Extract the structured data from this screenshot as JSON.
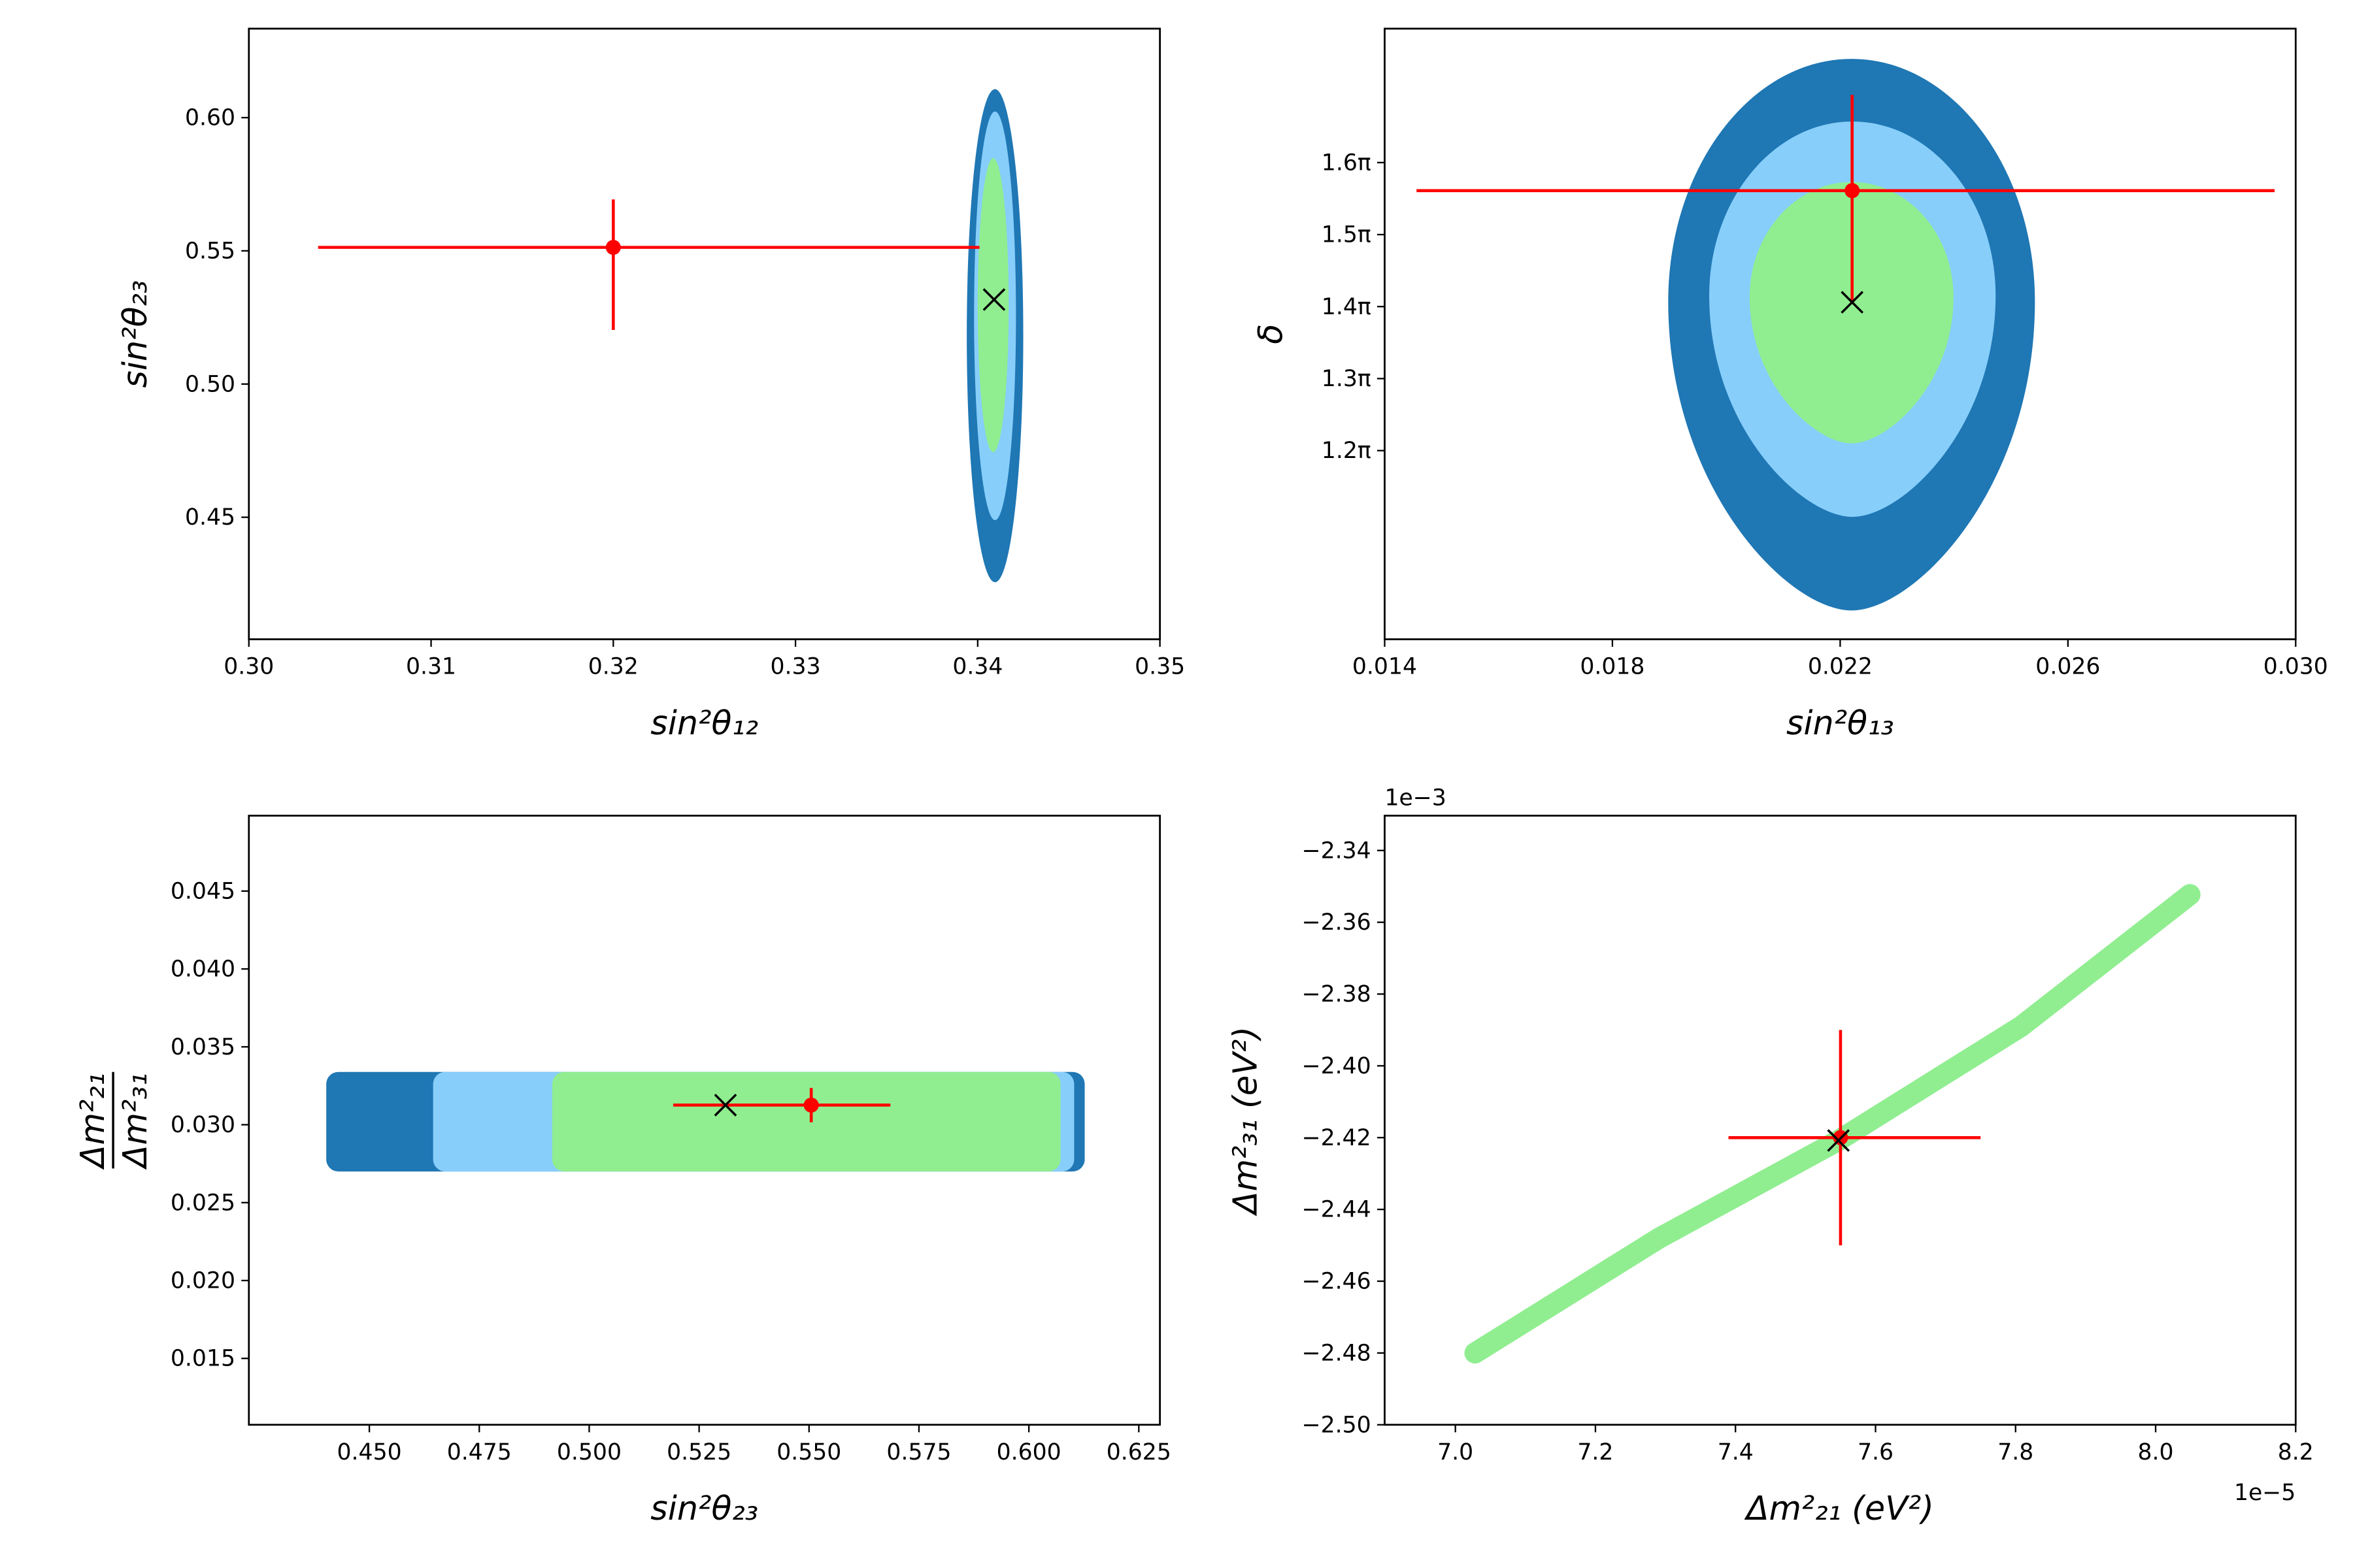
{
  "chart_data": [
    {
      "type": "contour",
      "shape": "ellipse",
      "xlabel": "sin²θ₁₂",
      "ylabel": "sin²θ₂₃",
      "xlim": [
        0.3,
        0.35
      ],
      "ylim": [
        0.4042,
        0.6334
      ],
      "xticks": [
        {
          "value": 0.3,
          "label": "0.30"
        },
        0.31,
        0.32,
        0.33,
        0.34,
        0.35
      ],
      "yticks": [
        0.45,
        {
          "value": 0.5,
          "label": "0.50"
        },
        0.55,
        {
          "value": 0.6,
          "label": "0.60"
        }
      ],
      "regions": [
        {
          "color": "#1f77b4",
          "x": [
            0.3394,
            0.3425
          ],
          "y": [
            0.4256,
            0.6107
          ]
        },
        {
          "color": "#87cefa",
          "x": [
            0.3398,
            0.3421
          ],
          "y": [
            0.4489,
            0.6023
          ]
        },
        {
          "color": "#90ee90",
          "x": [
            0.34,
            0.3417
          ],
          "y": [
            0.4744,
            0.5848
          ]
        }
      ],
      "best_fit": {
        "x": 0.3409,
        "y": 0.5317
      },
      "point": {
        "color": "red",
        "x": 0.32,
        "y": 0.5513,
        "xerr": [
          0.0162,
          0.0201
        ],
        "yerr": [
          0.031,
          0.018
        ]
      }
    },
    {
      "type": "contour",
      "shape": "egg",
      "xlabel": "sin²θ₁₃",
      "ylabel": "δ",
      "xlim": [
        0.014,
        0.03
      ],
      "ylim": [
        0.938,
        1.786
      ],
      "xticks": [
        0.014,
        0.018,
        0.022,
        0.026,
        {
          "value": 0.03,
          "label": "0.030"
        }
      ],
      "yticks": [
        {
          "value": 1.2,
          "label": "1.2π"
        },
        {
          "value": 1.3,
          "label": "1.3π"
        },
        {
          "value": 1.4,
          "label": "1.4π"
        },
        {
          "value": 1.5,
          "label": "1.5π"
        },
        {
          "value": 1.6,
          "label": "1.6π"
        }
      ],
      "regions": [
        {
          "color": "#1f77b4",
          "x": [
            0.01898,
            0.02542
          ],
          "y": [
            0.978,
            1.744
          ]
        },
        {
          "color": "#87cefa",
          "x": [
            0.0197,
            0.02473
          ],
          "y": [
            1.108,
            1.657
          ]
        },
        {
          "color": "#90ee90",
          "x": [
            0.02041,
            0.02399
          ],
          "y": [
            1.21,
            1.573
          ]
        }
      ],
      "best_fit": {
        "x": 0.02221,
        "y": 1.406
      },
      "point": {
        "color": "red",
        "x": 0.02221,
        "y": 1.561,
        "xerr": [
          0.00765,
          0.00742
        ],
        "yerr": [
          0.155,
          0.133
        ]
      }
    },
    {
      "type": "contour",
      "shape": "band",
      "xlabel": "sin²θ₂₃",
      "ylabel": {
        "numerator": "Δm²₂₁",
        "denominator": "Δm²₃₁"
      },
      "xlim": [
        0.4226,
        0.6298
      ],
      "ylim": [
        0.01074,
        0.04984
      ],
      "xticks": [
        {
          "value": 0.45,
          "label": "0.450"
        },
        0.475,
        {
          "value": 0.5,
          "label": "0.500"
        },
        0.525,
        {
          "value": 0.55,
          "label": "0.550"
        },
        0.575,
        {
          "value": 0.6,
          "label": "0.600"
        },
        0.625
      ],
      "yticks": [
        0.015,
        {
          "value": 0.02,
          "label": "0.020"
        },
        0.025,
        {
          "value": 0.03,
          "label": "0.030"
        },
        0.035,
        {
          "value": 0.04,
          "label": "0.040"
        },
        0.045
      ],
      "regions": [
        {
          "color": "#1f77b4",
          "x": [
            0.4402,
            0.6127
          ],
          "y": [
            0.027,
            0.03339
          ]
        },
        {
          "color": "#87cefa",
          "x": [
            0.4645,
            0.6103
          ],
          "y": [
            0.027,
            0.03339
          ]
        },
        {
          "color": "#90ee90",
          "x": [
            0.4916,
            0.6072
          ],
          "y": [
            0.027,
            0.03339
          ]
        }
      ],
      "best_fit": {
        "x": 0.531,
        "y": 0.03126
      },
      "point": {
        "color": "red",
        "x": 0.5505,
        "y": 0.03126,
        "xerr": [
          0.0314,
          0.018
        ],
        "yerr": [
          0.0011,
          0.0011
        ]
      }
    },
    {
      "type": "curve",
      "xlabel": "Δm²₂₁ (eV²)",
      "ylabel": "Δm²₃₁ (eV²)",
      "x_offset_label": "1e−5",
      "y_offset_label": "1e−3",
      "xlim": [
        6.899,
        8.2
      ],
      "ylim": [
        -2.5,
        -2.3303
      ],
      "xticks": [
        {
          "value": 7.0,
          "label": "7.0"
        },
        7.2,
        7.4,
        7.6,
        7.8,
        {
          "value": 8.0,
          "label": "8.0"
        },
        8.2
      ],
      "yticks": [
        {
          "value": -2.5,
          "label": "−2.50"
        },
        {
          "value": -2.48,
          "label": "−2.48"
        },
        {
          "value": -2.46,
          "label": "−2.46"
        },
        {
          "value": -2.44,
          "label": "−2.44"
        },
        {
          "value": -2.42,
          "label": "−2.42"
        },
        {
          "value": -2.4,
          "label": "−2.40"
        },
        {
          "value": -2.38,
          "label": "−2.38"
        },
        {
          "value": -2.36,
          "label": "−2.36"
        },
        {
          "value": -2.34,
          "label": "−2.34"
        }
      ],
      "curve": {
        "color": "#90ee90",
        "x": [
          7.028,
          7.291,
          7.547,
          7.808,
          8.049
        ],
        "y": [
          -2.48,
          -2.448,
          -2.4208,
          -2.389,
          -2.3523
        ]
      },
      "best_fit": {
        "x": 7.547,
        "y": -2.4208
      },
      "point": {
        "color": "red",
        "x": 7.55,
        "y": -2.42,
        "xerr": [
          0.16,
          0.2
        ],
        "yerr": [
          0.03,
          0.03
        ]
      }
    }
  ]
}
